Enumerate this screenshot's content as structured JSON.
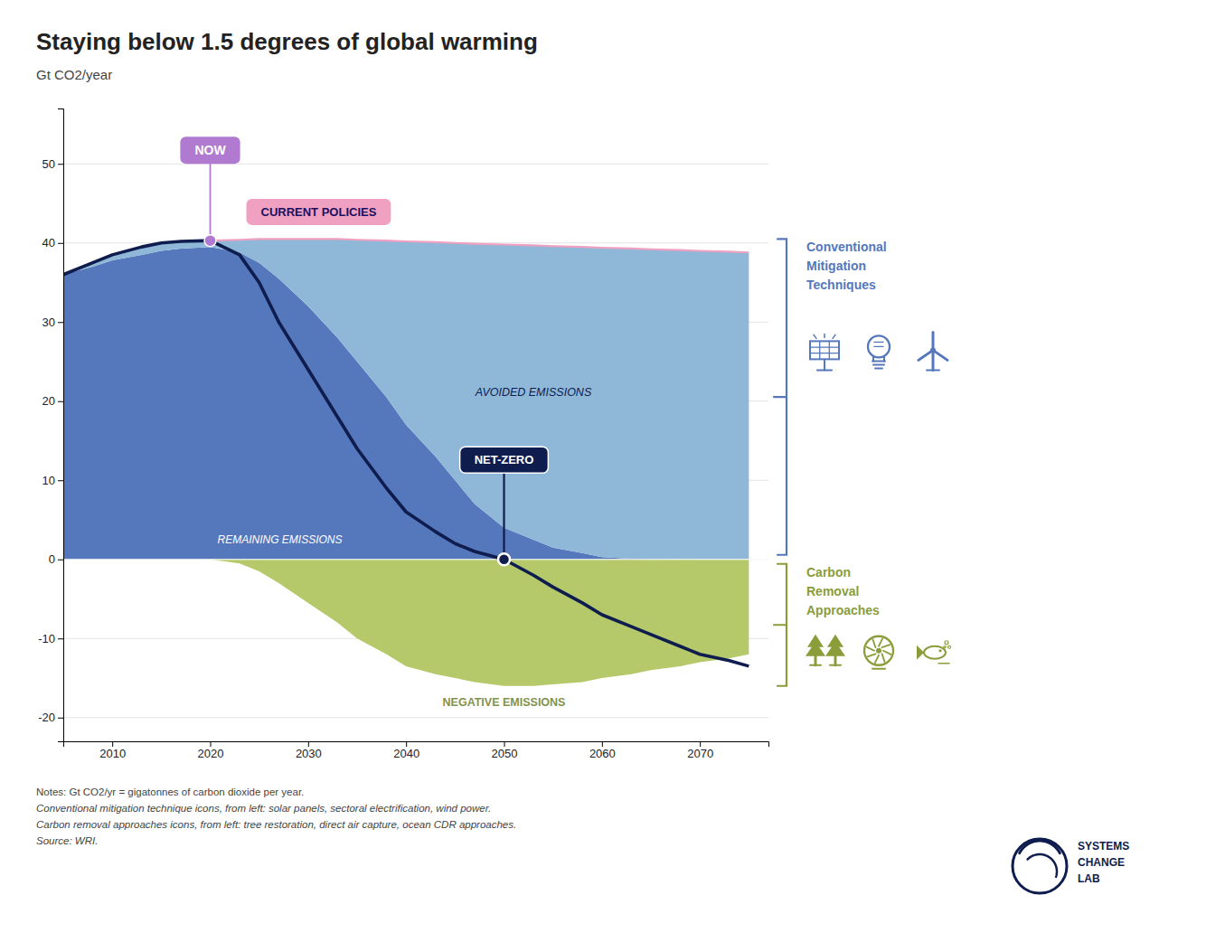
{
  "chart_data": {
    "type": "area",
    "title": "Staying below 1.5 degrees of global warming",
    "subtitle": "Gt CO2/year",
    "stacked": true,
    "grid": true,
    "x": [
      2005,
      2008,
      2010,
      2013,
      2015,
      2017,
      2020,
      2023,
      2025,
      2027,
      2030,
      2033,
      2035,
      2038,
      2040,
      2043,
      2045,
      2047,
      2050,
      2053,
      2055,
      2058,
      2060,
      2063,
      2065,
      2068,
      2070,
      2073,
      2075
    ],
    "xlim": [
      2005,
      2077
    ],
    "ylim": [
      -23,
      57
    ],
    "xticks": [
      2010,
      2020,
      2030,
      2040,
      2050,
      2060,
      2070
    ],
    "yticks": [
      -20,
      -10,
      0,
      10,
      20,
      30,
      40,
      50
    ],
    "series": [
      {
        "name": "REMAINING EMISSIONS",
        "type": "area",
        "color": "#5577bb",
        "values": [
          36.0,
          37.0,
          37.8,
          38.5,
          39.0,
          39.3,
          39.5,
          38.8,
          37.5,
          35.5,
          32.0,
          28.0,
          25.0,
          20.5,
          17.0,
          13.0,
          10.0,
          7.0,
          4.0,
          2.5,
          1.5,
          0.8,
          0.3,
          0.1,
          0.05,
          0.02,
          0.01,
          0.005,
          0.0
        ]
      },
      {
        "name": "AVOIDED EMISSIONS",
        "type": "area",
        "color": "#8fb8d8",
        "values": [
          0.0,
          0.5,
          0.7,
          1.0,
          1.0,
          0.9,
          0.8,
          1.6,
          3.0,
          5.0,
          8.5,
          12.5,
          15.4,
          19.8,
          23.2,
          27.1,
          30.0,
          32.9,
          35.8,
          37.2,
          38.1,
          38.7,
          39.1,
          39.2,
          39.15,
          39.08,
          38.99,
          38.895,
          38.8
        ]
      },
      {
        "name": "NEGATIVE EMISSIONS",
        "type": "area",
        "color": "#b5c96a",
        "values": [
          0,
          0,
          0,
          0,
          0,
          0,
          0,
          -0.5,
          -1.5,
          -3.0,
          -5.5,
          -8.0,
          -10.0,
          -12.0,
          -13.5,
          -14.5,
          -15.0,
          -15.5,
          -16.0,
          -16.0,
          -15.8,
          -15.5,
          -15.0,
          -14.5,
          -14.0,
          -13.5,
          -13.0,
          -12.5,
          -12.0
        ]
      },
      {
        "name": "CURRENT POLICIES",
        "type": "line",
        "color": "#f0a0c0",
        "values": [
          36.0,
          37.5,
          38.5,
          39.5,
          40.0,
          40.2,
          40.3,
          40.4,
          40.5,
          40.5,
          40.5,
          40.5,
          40.4,
          40.3,
          40.2,
          40.1,
          40.0,
          39.9,
          39.8,
          39.7,
          39.6,
          39.5,
          39.4,
          39.3,
          39.2,
          39.1,
          39.0,
          38.9,
          38.8
        ]
      },
      {
        "name": "NET-ZERO",
        "type": "line",
        "color": "#0f1d4e",
        "values": [
          36.0,
          37.5,
          38.5,
          39.5,
          40.0,
          40.2,
          40.3,
          38.5,
          35.0,
          30.0,
          24.0,
          18.0,
          14.0,
          9.0,
          6.0,
          3.5,
          2.0,
          1.0,
          0.0,
          -2.0,
          -3.5,
          -5.5,
          -7.0,
          -8.5,
          -9.5,
          -11.0,
          -12.0,
          -12.8,
          -13.5
        ]
      }
    ],
    "annotations": [
      {
        "text": "NOW",
        "color": "#b07ad0"
      },
      {
        "text": "Conventional\nMitigation\nTechniques",
        "color": "#5577bb"
      },
      {
        "text": "Carbon\nRemoval\nApproaches",
        "color": "#8a9d3a"
      },
      {
        "text": "SYSTEMS\nCHANGE\nLAB"
      }
    ],
    "notes": [
      "Notes: Gt CO2/yr = gigatonnes of carbon dioxide per year.",
      "Conventional mitigation technique icons, from left: solar panels, sectoral electrification, wind power.",
      "Carbon removal approaches icons, from left: tree restoration, direct air capture, ocean CDR approaches.",
      "Source: WRI."
    ]
  }
}
